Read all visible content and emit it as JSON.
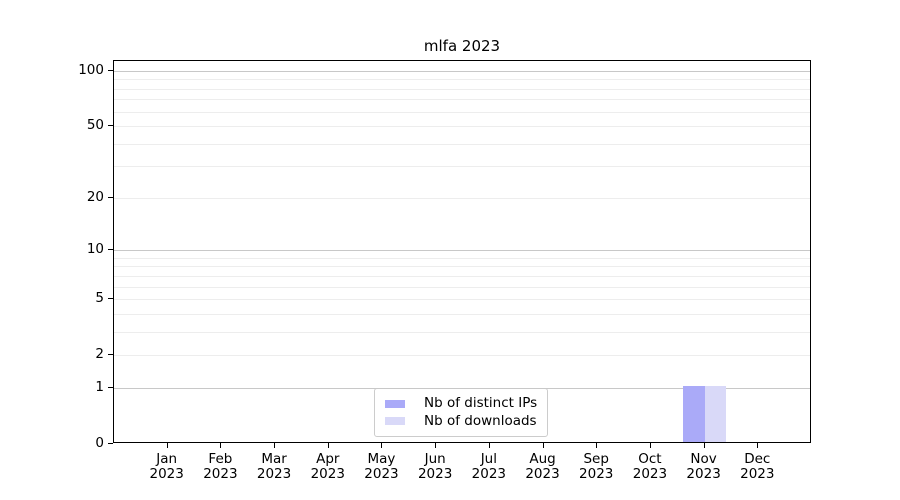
{
  "chart_data": {
    "type": "bar",
    "title": "mlfa 2023",
    "categories": [
      "Jan",
      "Feb",
      "Mar",
      "Apr",
      "May",
      "Jun",
      "Jul",
      "Aug",
      "Sep",
      "Oct",
      "Nov",
      "Dec"
    ],
    "x_year": "2023",
    "series": [
      {
        "name": "Nb of distinct IPs",
        "color": "#aaaaf8",
        "values": [
          0,
          0,
          0,
          0,
          0,
          0,
          0,
          0,
          0,
          0,
          1,
          0
        ]
      },
      {
        "name": "Nb of downloads",
        "color": "#d9d9f8",
        "values": [
          0,
          0,
          0,
          0,
          0,
          0,
          0,
          0,
          0,
          0,
          1,
          0
        ]
      }
    ],
    "xlabel": "",
    "ylabel": "",
    "yscale": "log1p",
    "ylim": [
      0,
      113.3
    ],
    "yticks": [
      0,
      1,
      2,
      5,
      10,
      20,
      50,
      100
    ],
    "major_gridlines": [
      1,
      10,
      100
    ],
    "minor_gridlines": [
      2,
      3,
      4,
      5,
      6,
      7,
      8,
      9,
      20,
      30,
      40,
      50,
      60,
      70,
      80,
      90
    ],
    "grid": "on",
    "legend_position": "lower center",
    "bar_group_width_ratio": 0.8
  },
  "colors": {
    "major_grid": "#c8c8c8",
    "minor_grid": "#ededed",
    "spine": "#000000",
    "text": "#000000",
    "legend_border": "#cccccc",
    "background": "#ffffff"
  }
}
